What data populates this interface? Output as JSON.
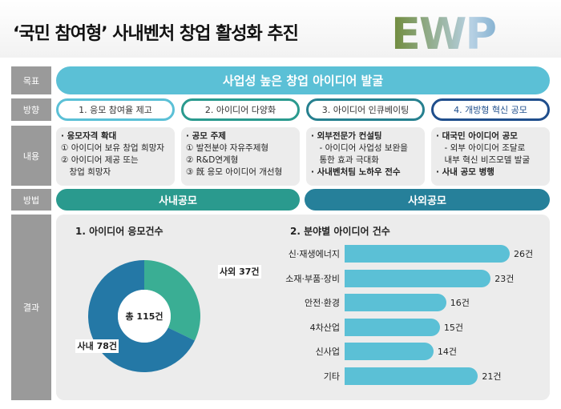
{
  "title": "‘국민 참여형’ 사내벤처 창업 활성화 추진",
  "logo": "EWP",
  "labels": {
    "goal": "목표",
    "direction": "방향",
    "content": "내용",
    "method": "방법",
    "result": "결과"
  },
  "goal": "사업성 높은 창업 아이디어 발굴",
  "directions": [
    "1. 응모 참여율 제고",
    "2. 아이디어 다양화",
    "3. 아이디어 인큐베이팅",
    "4. 개방형 혁신 공모"
  ],
  "direction_colors": [
    "#5bc0d6",
    "#2a9a8e",
    "#26808f",
    "#1f4e8c"
  ],
  "contents": [
    [
      "· 응모자격 확대",
      "① 아이디어 보유 창업 희망자",
      "② 아이디어 제공 또는",
      "　창업 희망자"
    ],
    [
      "· 공모 주제",
      "① 발전분야 자유주제형",
      "② R&D연계형",
      "③ 旣 응모 아이디어 개선형"
    ],
    [
      "· 외부전문가 컨설팅",
      "　- 아이디어 사업성 보완을",
      "　통한 효과 극대화",
      "· 사내벤처팀 노하우 전수"
    ],
    [
      "· 대국민 아이디어 공모",
      "　- 외부 아이디어 조달로",
      "　내부 혁신 비즈모델 발굴",
      "· 사내 공모 병행"
    ]
  ],
  "methods": [
    "사내공모",
    "사외공모"
  ],
  "chart_data": [
    {
      "type": "pie",
      "title": "1. 아이디어 응모건수",
      "center_label": "총 115건",
      "slices": [
        {
          "label": "사외 37건",
          "value": 37,
          "color": "#3aae94"
        },
        {
          "label": "사내 78건",
          "value": 78,
          "color": "#2478a6"
        }
      ]
    },
    {
      "type": "bar",
      "title": "2. 분야별 아이디어 건수",
      "categories": [
        "신·재생에너지",
        "소재·부품·장비",
        "안전·환경",
        "4차산업",
        "신사업",
        "기타"
      ],
      "values": [
        26,
        23,
        16,
        15,
        14,
        21
      ],
      "value_labels": [
        "26건",
        "23건",
        "16건",
        "15건",
        "14건",
        "21건"
      ],
      "color": "#5bc0d6",
      "xlim": [
        0,
        30
      ]
    }
  ]
}
